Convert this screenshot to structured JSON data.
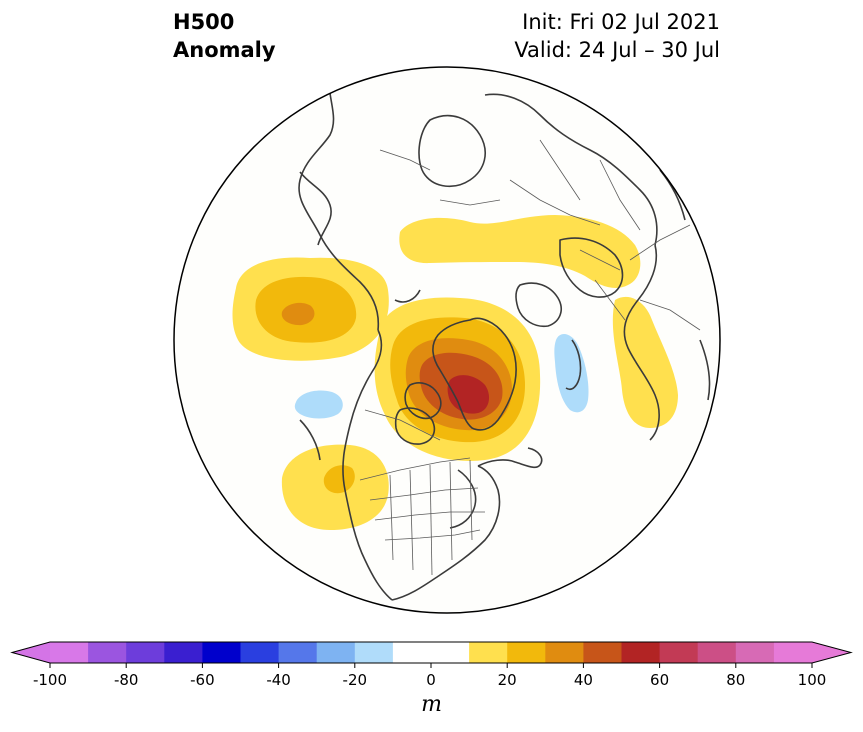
{
  "title": {
    "line1": "H500",
    "line2": "Anomaly"
  },
  "subtitle": {
    "init": "Init: Fri 02 Jul 2021",
    "valid": "Valid: 24 Jul – 30 Jul"
  },
  "colorbar": {
    "unit": "m",
    "ticks": [
      "-100",
      "-80",
      "-60",
      "-40",
      "-20",
      "0",
      "20",
      "40",
      "60",
      "80",
      "100"
    ],
    "tick_values": [
      -100,
      -80,
      -60,
      -40,
      -20,
      0,
      20,
      40,
      60,
      80,
      100
    ],
    "colors": [
      "#d878e8",
      "#9b55e0",
      "#6d3ddb",
      "#3a1fd0",
      "#0000cc",
      "#2a3fe0",
      "#5577ea",
      "#7eb3f2",
      "#b0dcfa",
      "#ffffff",
      "#ffffff",
      "#ffe04e",
      "#f2b90c",
      "#e08c10",
      "#c75519",
      "#b22424",
      "#c23a55",
      "#cc4f86",
      "#d76ab5",
      "#e67ad8"
    ],
    "extend_low_color": "#d474e6",
    "extend_high_color": "#e67ad8"
  },
  "map": {
    "projection": "north-polar-stereographic",
    "anomaly_colors": {
      "positive_10": "#ffe04e",
      "positive_20": "#f2b90c",
      "positive_30": "#e08c10",
      "positive_40": "#c75519",
      "positive_50": "#b22424",
      "negative_10": "#aedcfa"
    },
    "features": [
      "positive-anomaly-north-pacific",
      "positive-anomaly-greenland",
      "positive-anomaly-northern-eurasia",
      "positive-anomaly-europe",
      "positive-anomaly-western-north-america",
      "negative-anomaly-east-pacific",
      "negative-anomaly-western-europe-atlantic"
    ]
  }
}
